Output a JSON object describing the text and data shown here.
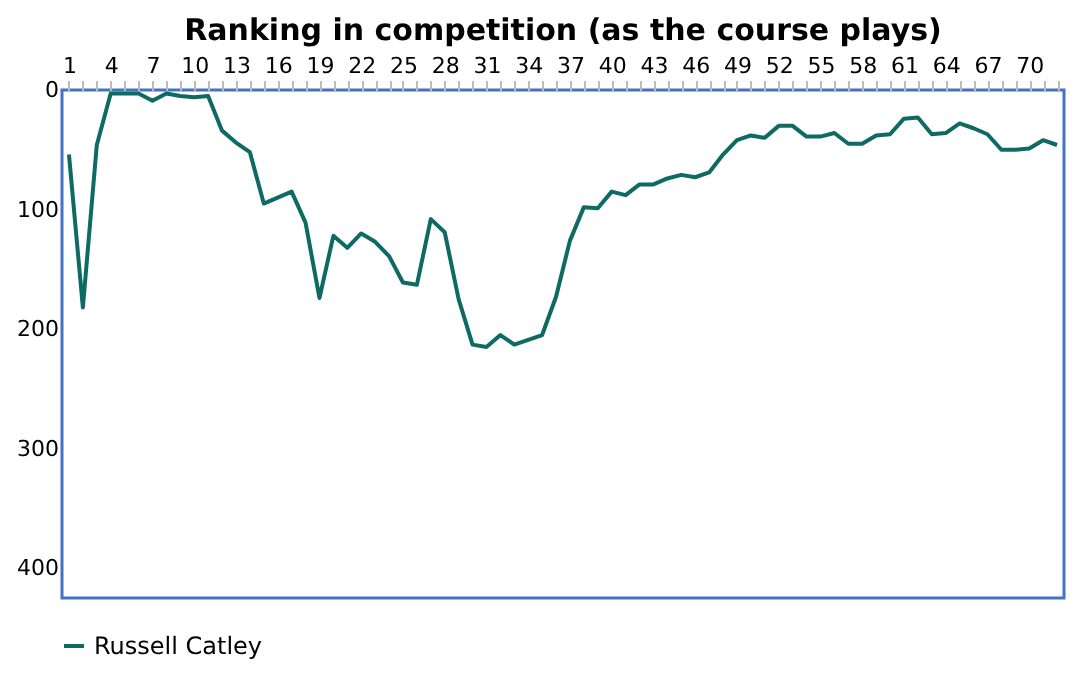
{
  "chart_data": {
    "type": "line",
    "title": "Ranking in competition (as the course plays)",
    "categories": [
      "1",
      null,
      null,
      "4",
      null,
      null,
      "7",
      null,
      null,
      "10",
      null,
      null,
      "13",
      null,
      null,
      "16",
      null,
      null,
      "19",
      null,
      null,
      "22",
      null,
      null,
      "25",
      null,
      null,
      "28",
      null,
      null,
      "31",
      null,
      null,
      "34",
      null,
      null,
      "37",
      null,
      null,
      "40",
      null,
      null,
      "43",
      null,
      null,
      "46",
      null,
      null,
      "49",
      null,
      null,
      "52",
      null,
      null,
      "55",
      null,
      null,
      "58",
      null,
      null,
      "61",
      null,
      null,
      "64",
      null,
      null,
      "67",
      null,
      null,
      "70",
      null,
      null
    ],
    "series": [
      {
        "name": "Russell Catley",
        "color": "#0d6b63",
        "values": [
          54,
          182,
          46,
          3,
          3,
          3,
          9,
          3,
          5,
          6,
          5,
          34,
          44,
          52,
          95,
          90,
          85,
          111,
          174,
          122,
          132,
          120,
          127,
          139,
          161,
          163,
          108,
          119,
          175,
          213,
          215,
          205,
          213,
          209,
          205,
          173,
          126,
          98,
          99,
          85,
          88,
          79,
          79,
          74,
          71,
          73,
          69,
          54,
          42,
          38,
          40,
          30,
          30,
          39,
          39,
          36,
          45,
          45,
          38,
          37,
          24,
          23,
          37,
          36,
          28,
          32,
          37,
          50,
          50,
          49,
          42,
          46
        ]
      }
    ],
    "ylim": [
      425,
      0
    ],
    "yticks": [
      0,
      100,
      200,
      300,
      400
    ],
    "grid": false,
    "legend": "bottom",
    "line_style": "solid",
    "marker": "none"
  }
}
